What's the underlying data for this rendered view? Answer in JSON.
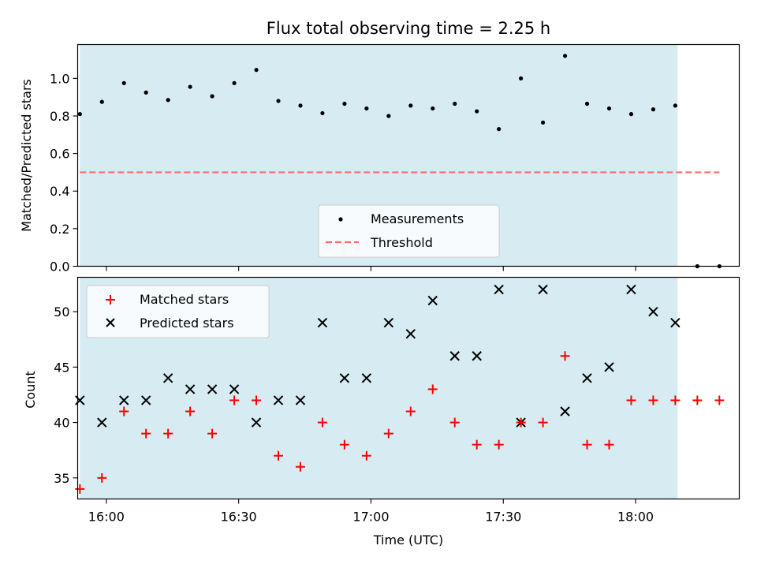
{
  "title": "Flux total observing time = 2.25 h",
  "colors": {
    "band": "#add8e6",
    "measurement": "#000000",
    "threshold": "#ff6a6a",
    "matched": "#ff0000",
    "predicted": "#000000"
  },
  "chart_data": [
    {
      "type": "scatter",
      "ylabel": "Matched/Predicted stars",
      "ylim": [
        0,
        1.18
      ],
      "yticks": [
        "0.0",
        "0.2",
        "0.4",
        "0.6",
        "0.8",
        "1.0"
      ],
      "x_range_min": [
        -6.5,
        143.5
      ],
      "shaded_span_min": [
        -6,
        129.5
      ],
      "grid": false,
      "legend_position": "bottom-center",
      "series": [
        {
          "name": "Measurements",
          "marker": "dot",
          "x_min": [
            -6,
            -1,
            4,
            9,
            14,
            19,
            24,
            29,
            34,
            39,
            44,
            49,
            54,
            59,
            64,
            69,
            74,
            79,
            84,
            89,
            94,
            99,
            104,
            109,
            114,
            119,
            124,
            129,
            134,
            139
          ],
          "y": [
            0.81,
            0.875,
            0.975,
            0.925,
            0.885,
            0.955,
            0.905,
            0.975,
            1.045,
            0.88,
            0.855,
            0.815,
            0.865,
            0.84,
            0.8,
            0.855,
            0.84,
            0.865,
            0.825,
            0.73,
            1.0,
            0.765,
            1.12,
            0.865,
            0.84,
            0.81,
            0.835,
            0.855,
            0.0,
            0.0
          ]
        },
        {
          "name": "Threshold",
          "style": "dashed",
          "x_min": [
            -6,
            139
          ],
          "y": [
            0.5,
            0.5
          ]
        }
      ]
    },
    {
      "type": "scatter",
      "ylabel": "Count",
      "xlabel": "Time (UTC)",
      "ylim": [
        33.1,
        53.1
      ],
      "yticks": [
        "35",
        "40",
        "45",
        "50"
      ],
      "x_range_min": [
        -6.5,
        143.5
      ],
      "x_tick_min": [
        0,
        30,
        60,
        90,
        120
      ],
      "x_tick_labels": [
        "16:00",
        "16:30",
        "17:00",
        "17:30",
        "18:00"
      ],
      "shaded_span_min": [
        -6,
        129.5
      ],
      "grid": false,
      "legend_position": "top-left",
      "series": [
        {
          "name": "Matched stars",
          "marker": "plus",
          "x_min": [
            -6,
            -1,
            4,
            9,
            14,
            19,
            24,
            29,
            34,
            39,
            44,
            49,
            54,
            59,
            64,
            69,
            74,
            79,
            84,
            89,
            94,
            99,
            104,
            109,
            114,
            119,
            124,
            129,
            134,
            139
          ],
          "y": [
            34,
            35,
            41,
            39,
            39,
            41,
            39,
            42,
            42,
            37,
            36,
            40,
            38,
            37,
            39,
            41,
            43,
            40,
            38,
            38,
            40,
            40,
            46,
            38,
            38,
            42,
            42,
            42,
            42,
            42
          ]
        },
        {
          "name": "Predicted stars",
          "marker": "x",
          "x_min": [
            -6,
            -1,
            4,
            9,
            14,
            19,
            24,
            29,
            34,
            39,
            44,
            49,
            54,
            59,
            64,
            69,
            74,
            79,
            84,
            89,
            94,
            99,
            104,
            109,
            114,
            119,
            124,
            129
          ],
          "y": [
            42,
            40,
            42,
            42,
            44,
            43,
            43,
            43,
            40,
            42,
            42,
            49,
            44,
            44,
            49,
            48,
            51,
            46,
            46,
            52,
            40,
            52,
            41,
            44,
            45,
            52,
            50,
            49
          ]
        }
      ]
    }
  ]
}
